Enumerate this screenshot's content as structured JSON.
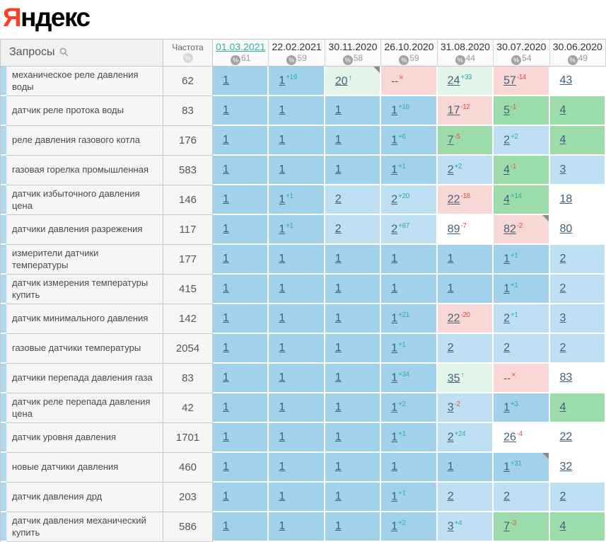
{
  "logo": {
    "first_letter": "Я",
    "rest": "ндекс"
  },
  "colors": {
    "brand_red": "#fc3f1d",
    "active_date_link": "#2cb3a4",
    "position_link": "#41607c",
    "change_positive": "#2ab3a3",
    "change_negative": "#e0544c",
    "cell_blue": "#a2d1ec",
    "cell_light_blue": "#bfdff2",
    "cell_green": "#9cdcab",
    "cell_light_green": "#e3f4e8",
    "cell_pink": "#f8d7d5",
    "cell_white": "#ffffff",
    "row_stripe": "#afd6f1"
  },
  "table": {
    "queries_header": "Запросы",
    "frequency_header": "Частота",
    "search_icon": "search-icon",
    "frequency_icon": "percent-circle-icon",
    "dates": [
      {
        "label": "01.03.2021",
        "visibility": "61",
        "active": true
      },
      {
        "label": "22.02.2021",
        "visibility": "59",
        "active": false
      },
      {
        "label": "30.11.2020",
        "visibility": "58",
        "active": false
      },
      {
        "label": "26.10.2020",
        "visibility": "59",
        "active": false
      },
      {
        "label": "31.08.2020",
        "visibility": "44",
        "active": false
      },
      {
        "label": "30.07.2020",
        "visibility": "54",
        "active": false
      },
      {
        "label": "30.06.2020",
        "visibility": "49",
        "active": false
      }
    ],
    "rows": [
      {
        "query": "механическое реле давления воды",
        "frequency": "62",
        "cells": [
          {
            "value": "1",
            "bg": "b"
          },
          {
            "value": "1",
            "change": "+19",
            "dir": "up",
            "bg": "b"
          },
          {
            "value": "20",
            "marker": "arrow",
            "bg": "lg",
            "corner": true
          },
          {
            "value": "--",
            "marker": "x",
            "bg": "p",
            "nolink": true
          },
          {
            "value": "24",
            "change": "+33",
            "dir": "up",
            "bg": "lg"
          },
          {
            "value": "57",
            "change": "-14",
            "dir": "down",
            "bg": "p"
          },
          {
            "value": "43",
            "bg": "w"
          }
        ]
      },
      {
        "query": "датчик реле протока воды",
        "frequency": "83",
        "cells": [
          {
            "value": "1",
            "bg": "b"
          },
          {
            "value": "1",
            "bg": "b"
          },
          {
            "value": "1",
            "bg": "b"
          },
          {
            "value": "1",
            "change": "+16",
            "dir": "up",
            "bg": "b"
          },
          {
            "value": "17",
            "change": "-12",
            "dir": "down",
            "bg": "p"
          },
          {
            "value": "5",
            "change": "-1",
            "dir": "down",
            "bg": "g"
          },
          {
            "value": "4",
            "bg": "g"
          }
        ]
      },
      {
        "query": "реле давления газового котла",
        "frequency": "176",
        "cells": [
          {
            "value": "1",
            "bg": "b"
          },
          {
            "value": "1",
            "bg": "b"
          },
          {
            "value": "1",
            "bg": "b"
          },
          {
            "value": "1",
            "change": "+6",
            "dir": "up",
            "bg": "b"
          },
          {
            "value": "7",
            "change": "-5",
            "dir": "down",
            "bg": "g"
          },
          {
            "value": "2",
            "change": "+2",
            "dir": "up",
            "bg": "lb"
          },
          {
            "value": "4",
            "bg": "g"
          }
        ]
      },
      {
        "query": "газовая горелка промышленная",
        "frequency": "583",
        "cells": [
          {
            "value": "1",
            "bg": "b"
          },
          {
            "value": "1",
            "bg": "b"
          },
          {
            "value": "1",
            "bg": "b"
          },
          {
            "value": "1",
            "change": "+1",
            "dir": "up",
            "bg": "b"
          },
          {
            "value": "2",
            "change": "+2",
            "dir": "up",
            "bg": "lb"
          },
          {
            "value": "4",
            "change": "-1",
            "dir": "down",
            "bg": "g"
          },
          {
            "value": "3",
            "bg": "lb"
          }
        ]
      },
      {
        "query": "датчик избыточного давления цена",
        "frequency": "146",
        "cells": [
          {
            "value": "1",
            "bg": "b"
          },
          {
            "value": "1",
            "change": "+1",
            "dir": "up",
            "bg": "b"
          },
          {
            "value": "2",
            "bg": "lb"
          },
          {
            "value": "2",
            "change": "+20",
            "dir": "up",
            "bg": "lb"
          },
          {
            "value": "22",
            "change": "-18",
            "dir": "down",
            "bg": "p"
          },
          {
            "value": "4",
            "change": "+14",
            "dir": "up",
            "bg": "g"
          },
          {
            "value": "18",
            "bg": "w"
          }
        ]
      },
      {
        "query": "датчики давления разрежения",
        "frequency": "117",
        "cells": [
          {
            "value": "1",
            "bg": "b"
          },
          {
            "value": "1",
            "change": "+1",
            "dir": "up",
            "bg": "b"
          },
          {
            "value": "2",
            "bg": "lb"
          },
          {
            "value": "2",
            "change": "+87",
            "dir": "up",
            "bg": "lb"
          },
          {
            "value": "89",
            "change": "-7",
            "dir": "down",
            "bg": "w"
          },
          {
            "value": "82",
            "change": "-2",
            "dir": "down",
            "bg": "p",
            "corner": true
          },
          {
            "value": "80",
            "bg": "w"
          }
        ]
      },
      {
        "query": "измерители датчики температуры",
        "frequency": "177",
        "cells": [
          {
            "value": "1",
            "bg": "b"
          },
          {
            "value": "1",
            "bg": "b"
          },
          {
            "value": "1",
            "bg": "b"
          },
          {
            "value": "1",
            "bg": "b"
          },
          {
            "value": "1",
            "bg": "b"
          },
          {
            "value": "1",
            "change": "+1",
            "dir": "up",
            "bg": "b"
          },
          {
            "value": "2",
            "bg": "lb"
          }
        ]
      },
      {
        "query": "датчик измерения температуры купить",
        "frequency": "415",
        "cells": [
          {
            "value": "1",
            "bg": "b"
          },
          {
            "value": "1",
            "bg": "b"
          },
          {
            "value": "1",
            "bg": "b"
          },
          {
            "value": "1",
            "bg": "b"
          },
          {
            "value": "1",
            "bg": "b"
          },
          {
            "value": "1",
            "change": "+1",
            "dir": "up",
            "bg": "b"
          },
          {
            "value": "2",
            "bg": "lb"
          }
        ]
      },
      {
        "query": "датчик минимального давления",
        "frequency": "142",
        "cells": [
          {
            "value": "1",
            "bg": "b"
          },
          {
            "value": "1",
            "bg": "b"
          },
          {
            "value": "1",
            "bg": "b"
          },
          {
            "value": "1",
            "change": "+21",
            "dir": "up",
            "bg": "b"
          },
          {
            "value": "22",
            "change": "-20",
            "dir": "down",
            "bg": "p"
          },
          {
            "value": "2",
            "change": "+1",
            "dir": "up",
            "bg": "lb"
          },
          {
            "value": "3",
            "bg": "lb"
          }
        ]
      },
      {
        "query": "газовые датчики температуры",
        "frequency": "2054",
        "cells": [
          {
            "value": "1",
            "bg": "b"
          },
          {
            "value": "1",
            "bg": "b"
          },
          {
            "value": "1",
            "bg": "b"
          },
          {
            "value": "1",
            "change": "+1",
            "dir": "up",
            "bg": "b"
          },
          {
            "value": "2",
            "bg": "lb"
          },
          {
            "value": "2",
            "bg": "lb"
          },
          {
            "value": "2",
            "bg": "lb"
          }
        ]
      },
      {
        "query": "датчики перепада давления газа",
        "frequency": "83",
        "cells": [
          {
            "value": "1",
            "bg": "b"
          },
          {
            "value": "1",
            "bg": "b"
          },
          {
            "value": "1",
            "bg": "b"
          },
          {
            "value": "1",
            "change": "+34",
            "dir": "up",
            "bg": "b"
          },
          {
            "value": "35",
            "marker": "arrow",
            "bg": "lg"
          },
          {
            "value": "--",
            "marker": "x",
            "bg": "p",
            "nolink": true
          },
          {
            "value": "83",
            "bg": "w"
          }
        ]
      },
      {
        "query": "датчик реле перепада давления цена",
        "frequency": "42",
        "cells": [
          {
            "value": "1",
            "bg": "b"
          },
          {
            "value": "1",
            "bg": "b"
          },
          {
            "value": "1",
            "bg": "b"
          },
          {
            "value": "1",
            "change": "+2",
            "dir": "up",
            "bg": "b"
          },
          {
            "value": "3",
            "change": "-2",
            "dir": "down",
            "bg": "lb"
          },
          {
            "value": "1",
            "change": "+3",
            "dir": "up",
            "bg": "b"
          },
          {
            "value": "4",
            "bg": "g"
          }
        ]
      },
      {
        "query": "датчик уровня давления",
        "frequency": "1701",
        "cells": [
          {
            "value": "1",
            "bg": "b"
          },
          {
            "value": "1",
            "bg": "b"
          },
          {
            "value": "1",
            "bg": "b"
          },
          {
            "value": "1",
            "change": "+1",
            "dir": "up",
            "bg": "b"
          },
          {
            "value": "2",
            "change": "+24",
            "dir": "up",
            "bg": "lb"
          },
          {
            "value": "26",
            "change": "-4",
            "dir": "down",
            "bg": "w"
          },
          {
            "value": "22",
            "bg": "w"
          }
        ]
      },
      {
        "query": "новые датчики давления",
        "frequency": "460",
        "cells": [
          {
            "value": "1",
            "bg": "b"
          },
          {
            "value": "1",
            "bg": "b"
          },
          {
            "value": "1",
            "bg": "b"
          },
          {
            "value": "1",
            "bg": "b"
          },
          {
            "value": "1",
            "bg": "b"
          },
          {
            "value": "1",
            "change": "+31",
            "dir": "up",
            "bg": "b",
            "corner": true
          },
          {
            "value": "32",
            "bg": "w"
          }
        ]
      },
      {
        "query": "датчик давления дрд",
        "frequency": "203",
        "cells": [
          {
            "value": "1",
            "bg": "b"
          },
          {
            "value": "1",
            "bg": "b"
          },
          {
            "value": "1",
            "bg": "b"
          },
          {
            "value": "1",
            "change": "+1",
            "dir": "up",
            "bg": "b"
          },
          {
            "value": "2",
            "bg": "lb"
          },
          {
            "value": "2",
            "bg": "lb"
          },
          {
            "value": "2",
            "bg": "lb"
          }
        ]
      },
      {
        "query": "датчик давления механический купить",
        "frequency": "586",
        "cells": [
          {
            "value": "1",
            "bg": "b"
          },
          {
            "value": "1",
            "bg": "b"
          },
          {
            "value": "1",
            "bg": "b"
          },
          {
            "value": "1",
            "change": "+2",
            "dir": "up",
            "bg": "b"
          },
          {
            "value": "3",
            "change": "+4",
            "dir": "up",
            "bg": "lb"
          },
          {
            "value": "7",
            "change": "-3",
            "dir": "down",
            "bg": "g"
          },
          {
            "value": "4",
            "bg": "g"
          }
        ]
      }
    ]
  }
}
